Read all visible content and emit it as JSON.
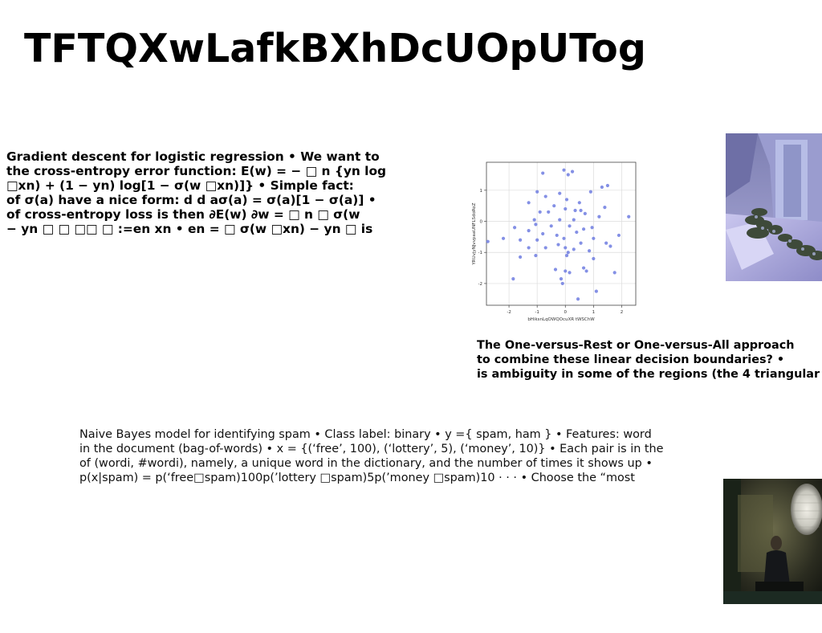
{
  "slide": {
    "title": "TFTQXwLafkBXhDcUOpUTog"
  },
  "text_blocks": {
    "logistic": [
      "Gradient descent for logistic regression • We want to",
      "the cross-entropy error function: E(w) = − □ n {yn log",
      "□xn) + (1 − yn) log[1 − σ(w □xn)]} • Simple fact:",
      "of σ(a) have a nice form: d d aσ(a) = σ(a)[1 − σ(a)] •",
      "of cross-entropy loss is then ∂E(w) ∂w = □ n □ σ(w",
      "− yn □ □ □□ □ :=en xn • en = □ σ(w □xn) − yn □ is"
    ],
    "one_vs_rest": [
      "The One-versus-Rest or One-versus-All approach",
      "to combine these linear decision boundaries? •",
      "is ambiguity in some of the regions (the 4 triangular"
    ],
    "naive_bayes": [
      "Naive Bayes model for identifying spam • Class label: binary • y ={ spam, ham } • Features: word",
      "in the document (bag-of-words) • x = {(‘free’, 100), (‘lottery’, 5), (‘money’, 10)} • Each pair is in the",
      "of (wordi, #wordi), namely, a unique word in the dictionary, and the number of times it shows up •",
      "p(x|spam) = p(‘free□spam)100p(’lottery □spam)5p(’money □spam)10 · · · • Choose the “most"
    ]
  },
  "chart_data": {
    "type": "scatter",
    "xlabel": "bHiksnLqOWQOcuXR tWSChW",
    "ylabel": "YRUvjyNJvvpaaUNFLSdoRoZ",
    "xlim": [
      -2.8,
      2.5
    ],
    "ylim": [
      -2.7,
      1.9
    ],
    "xticks": [
      "-2",
      "-1",
      "0",
      "1",
      "2"
    ],
    "yticks": [
      "1",
      "0",
      "-1",
      "-2"
    ],
    "xtick_values": [
      -2,
      -1,
      0,
      1,
      2
    ],
    "ytick_values": [
      1,
      0,
      -1,
      -2
    ],
    "grid": true,
    "color": "#6f7de0",
    "points": [
      [
        -0.8,
        1.55
      ],
      [
        -0.05,
        1.65
      ],
      [
        0.1,
        1.5
      ],
      [
        0.25,
        1.6
      ],
      [
        1.5,
        1.15
      ],
      [
        1.3,
        1.1
      ],
      [
        0.9,
        0.95
      ],
      [
        -1.0,
        0.95
      ],
      [
        -0.7,
        0.8
      ],
      [
        -0.2,
        0.9
      ],
      [
        -1.3,
        0.6
      ],
      [
        -0.4,
        0.5
      ],
      [
        0.05,
        0.7
      ],
      [
        0.5,
        0.6
      ],
      [
        1.4,
        0.45
      ],
      [
        -0.9,
        0.3
      ],
      [
        -0.6,
        0.3
      ],
      [
        0.0,
        0.4
      ],
      [
        0.35,
        0.35
      ],
      [
        0.55,
        0.35
      ],
      [
        0.7,
        0.25
      ],
      [
        1.2,
        0.15
      ],
      [
        2.25,
        0.15
      ],
      [
        -1.1,
        0.05
      ],
      [
        -0.2,
        0.05
      ],
      [
        0.3,
        0.05
      ],
      [
        -1.05,
        -0.1
      ],
      [
        -0.5,
        -0.15
      ],
      [
        0.15,
        -0.15
      ],
      [
        0.65,
        -0.25
      ],
      [
        0.95,
        -0.2
      ],
      [
        1.9,
        -0.45
      ],
      [
        -1.8,
        -0.2
      ],
      [
        -1.3,
        -0.3
      ],
      [
        -0.8,
        -0.4
      ],
      [
        -0.3,
        -0.45
      ],
      [
        -0.05,
        -0.55
      ],
      [
        0.4,
        -0.35
      ],
      [
        1.0,
        -0.55
      ],
      [
        1.45,
        -0.7
      ],
      [
        -2.2,
        -0.55
      ],
      [
        -2.75,
        -0.65
      ],
      [
        -1.6,
        -0.6
      ],
      [
        -1.0,
        -0.6
      ],
      [
        -0.25,
        -0.75
      ],
      [
        0.0,
        -0.85
      ],
      [
        0.55,
        -0.7
      ],
      [
        1.6,
        -0.8
      ],
      [
        -1.3,
        -0.85
      ],
      [
        -0.7,
        -0.85
      ],
      [
        0.1,
        -1.0
      ],
      [
        0.3,
        -0.9
      ],
      [
        0.85,
        -0.95
      ],
      [
        -1.05,
        -1.1
      ],
      [
        -1.6,
        -1.15
      ],
      [
        0.05,
        -1.1
      ],
      [
        1.0,
        -1.2
      ],
      [
        0.65,
        -1.5
      ],
      [
        -0.35,
        -1.55
      ],
      [
        0.0,
        -1.6
      ],
      [
        0.15,
        -1.65
      ],
      [
        0.75,
        -1.6
      ],
      [
        1.75,
        -1.65
      ],
      [
        -1.85,
        -1.85
      ],
      [
        -0.15,
        -1.85
      ],
      [
        -0.1,
        -2.0
      ],
      [
        1.1,
        -2.25
      ],
      [
        0.45,
        -2.5
      ]
    ]
  },
  "images": {
    "top_right": "3D rendered scene with a doorway and snowy bushes",
    "bottom_right": "Dark room with a person and a rounded lamp"
  }
}
